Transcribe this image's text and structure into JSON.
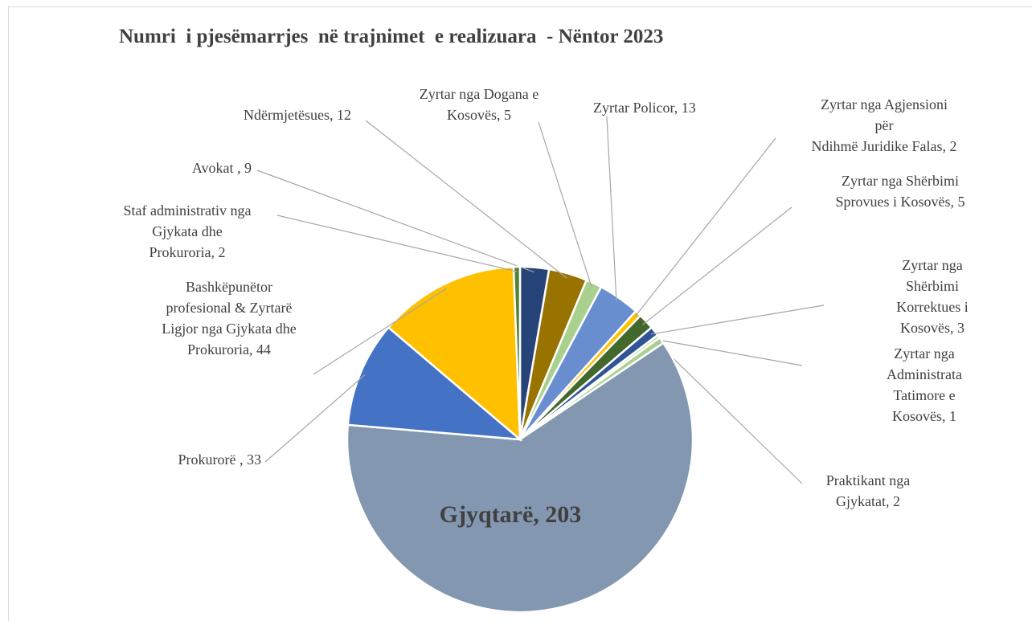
{
  "chart_data": {
    "type": "pie",
    "title": "Numri  i pjesëmarrjes  në trajnimet  e realizuara  - Nëntor 2023",
    "values": [
      9,
      12,
      5,
      13,
      2,
      5,
      3,
      1,
      2,
      203,
      33,
      44,
      2
    ],
    "value_labels": [
      "Avokat , 9",
      "Ndërmjetësues, 12",
      "Zyrtar nga Dogana  e\nKosovës, 5",
      "Zyrtar Policor, 13",
      "Zyrtar nga Agjensioni  për\nNdihmë Juridike Falas, 2",
      "Zyrtar nga Shërbimi\nSprovues i Kosovës, 5",
      "Zyrtar nga Shërbimi\nKorrektues i Kosovës, 3",
      "Zyrtar nga Administrata\nTatimore e Kosovës, 1",
      "Praktikant nga\nGjykatat, 2",
      "Gjyqtarë,  203",
      "Prokurorë , 33",
      "Bashkëpunëtor\nprofesional & Zyrtarë\nLigjor  nga Gjykata dhe\nProkuroria, 44",
      "Staf administrativ nga\nGjykata dhe\nProkuroria, 2"
    ],
    "colors": [
      "#264478",
      "#997300",
      "#a9d18e",
      "#698ed0",
      "#ffc000",
      "#43682b",
      "#2f5597",
      "#c5e0b4",
      "#a9d18e",
      "#8497b0",
      "#4472c4",
      "#ffc000",
      "#548235"
    ]
  }
}
